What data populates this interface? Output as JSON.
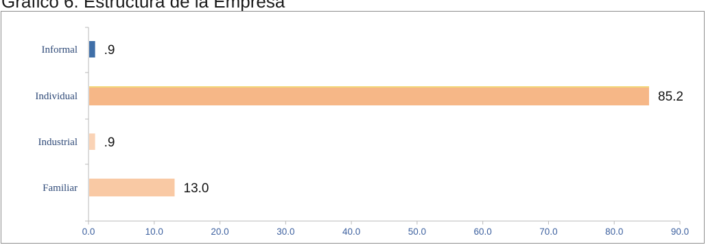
{
  "chart_data": {
    "type": "bar",
    "orientation": "horizontal",
    "title": "Gráfico 6. Estructura de la Empresa",
    "categories": [
      "Informal",
      "Individual",
      "Industrial",
      "Familiar"
    ],
    "values": [
      0.9,
      85.2,
      0.9,
      13.0
    ],
    "value_labels": [
      ".9",
      "85.2",
      ".9",
      "13.0"
    ],
    "bar_colors": [
      "#3f6fa8",
      "#f6b787",
      "#fad3b6",
      "#f9c9a4"
    ],
    "xlim": [
      0,
      90
    ],
    "x_ticks": [
      0,
      10,
      20,
      30,
      40,
      50,
      60,
      70,
      80,
      90
    ],
    "x_tick_labels": [
      "0.0",
      "10.0",
      "20.0",
      "30.0",
      "40.0",
      "50.0",
      "60.0",
      "70.0",
      "80.0",
      "90.0"
    ],
    "xlabel": "",
    "ylabel": "",
    "grid": false,
    "legend": "none"
  }
}
